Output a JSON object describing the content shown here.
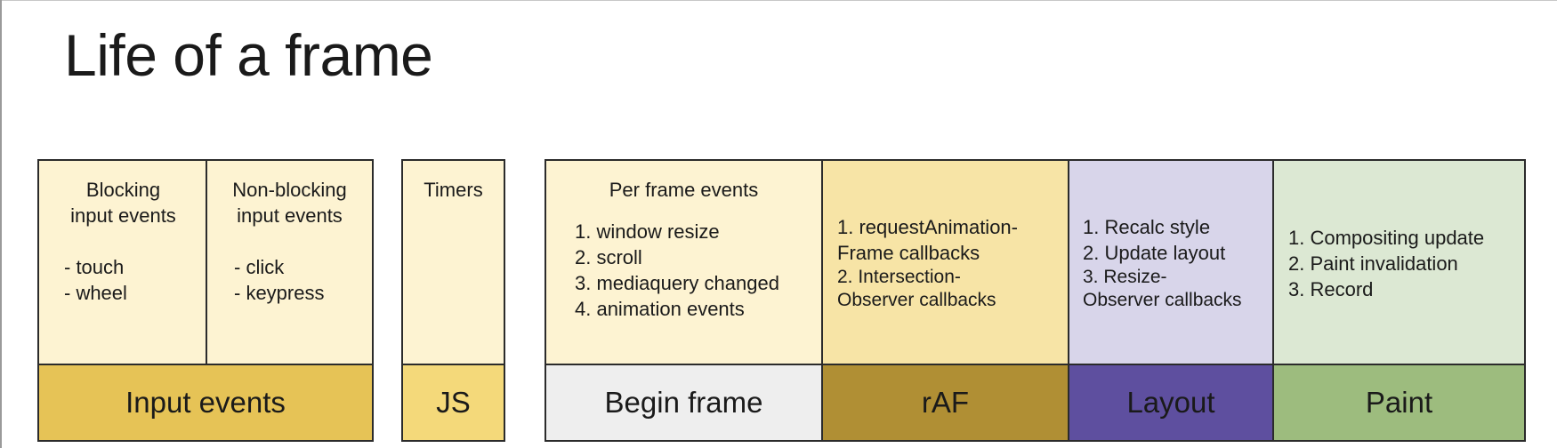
{
  "title": "Life of a frame",
  "input_group": {
    "blocking": {
      "heading": [
        "Blocking",
        "input events"
      ],
      "items": [
        "- touch",
        "- wheel"
      ]
    },
    "non_blocking": {
      "heading": [
        "Non-blocking",
        "input events"
      ],
      "items": [
        "- click",
        "- keypress"
      ]
    },
    "label": "Input events"
  },
  "js_group": {
    "timers": "Timers",
    "label": "JS"
  },
  "frame_group": {
    "begin_frame": {
      "heading": "Per frame events",
      "items": [
        "1. window resize",
        "2. scroll",
        "3. mediaquery changed",
        "4. animation events"
      ],
      "label": "Begin frame"
    },
    "raf": {
      "lines": [
        "1. requestAnimation-",
        "Frame callbacks",
        "2. Intersection-",
        "Observer callbacks"
      ],
      "label": "rAF"
    },
    "layout": {
      "lines": [
        "1. Recalc style",
        "2. Update layout",
        "3. Resize-",
        "Observer callbacks"
      ],
      "label": "Layout"
    },
    "paint": {
      "lines": [
        "1. Compositing update",
        "2. Paint invalidation",
        "3. Record"
      ],
      "label": "Paint"
    }
  },
  "colors": {
    "input_top": "#fdf3d2",
    "input_bottom": "#e6c356",
    "js_bottom": "#f4d97a",
    "begin_bottom": "#eeeeee",
    "raf_top": "#f7e4a6",
    "raf_bottom": "#b08f34",
    "layout_top": "#d8d5ea",
    "layout_bottom": "#5e4f9f",
    "paint_top": "#dce8d3",
    "paint_bottom": "#9dbc7e"
  }
}
